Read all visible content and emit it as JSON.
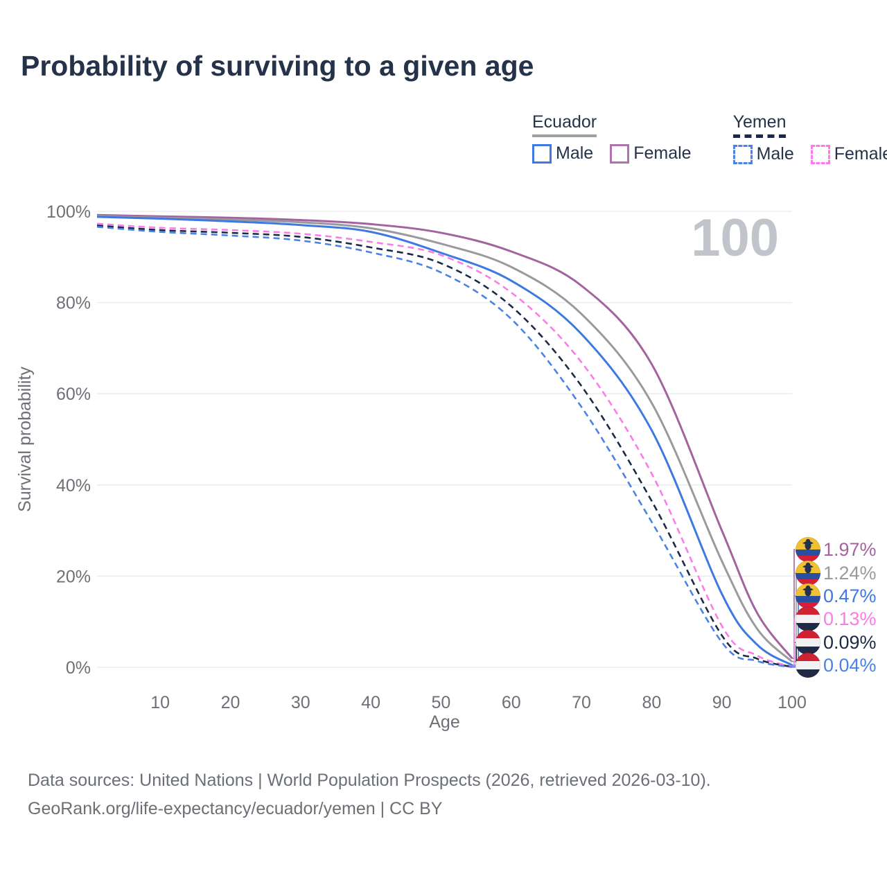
{
  "title": "Probability of surviving to a given age",
  "watermark": "100",
  "legend": {
    "groups": [
      {
        "name": "Ecuador",
        "line_style": "solid",
        "underline_color": "#9e9ea3",
        "items": [
          {
            "label": "Male",
            "color": "#3d79e0"
          },
          {
            "label": "Female",
            "color": "#ad74ad"
          }
        ]
      },
      {
        "name": "Yemen",
        "line_style": "dashed",
        "underline_color": "#1b2a45",
        "items": [
          {
            "label": "Male",
            "color": "#4a82e8"
          },
          {
            "label": "Female",
            "color": "#fb7ce8"
          }
        ]
      }
    ]
  },
  "chart_data": {
    "type": "line",
    "title": "Probability of surviving to a given age",
    "xlabel": "Age",
    "ylabel": "Survival probability",
    "xlim": [
      1,
      100
    ],
    "ylim": [
      0,
      100
    ],
    "grid": "horizontal-only",
    "x_ticks": [
      {
        "v": 10,
        "label": "10"
      },
      {
        "v": 20,
        "label": "20"
      },
      {
        "v": 30,
        "label": "30"
      },
      {
        "v": 40,
        "label": "40"
      },
      {
        "v": 50,
        "label": "50"
      },
      {
        "v": 60,
        "label": "60"
      },
      {
        "v": 70,
        "label": "70"
      },
      {
        "v": 80,
        "label": "80"
      },
      {
        "v": 90,
        "label": "90"
      },
      {
        "v": 100,
        "label": "100"
      }
    ],
    "y_ticks": [
      {
        "v": 0,
        "label": "0%"
      },
      {
        "v": 20,
        "label": "20%"
      },
      {
        "v": 40,
        "label": "40%"
      },
      {
        "v": 60,
        "label": "60%"
      },
      {
        "v": 80,
        "label": "80%"
      },
      {
        "v": 100,
        "label": "100%"
      }
    ],
    "ages": [
      1,
      10,
      20,
      30,
      40,
      50,
      60,
      70,
      80,
      90,
      95,
      100
    ],
    "series": [
      {
        "name": "Ecuador Female",
        "country": "Ecuador",
        "sex": "Female",
        "color": "#a4639e",
        "dashed": false,
        "flag": "ecuador",
        "end_label": "1.97%",
        "values": [
          99.2,
          98.9,
          98.6,
          98.1,
          97.2,
          95.3,
          91.2,
          83.7,
          66.5,
          30.0,
          12.0,
          1.97
        ]
      },
      {
        "name": "Ecuador Both sexes",
        "country": "Ecuador",
        "sex": "Both",
        "color": "#9a9a9e",
        "dashed": false,
        "flag": "ecuador",
        "end_label": "1.24%",
        "values": [
          99.0,
          98.6,
          98.2,
          97.6,
          96.3,
          92.9,
          87.8,
          77.5,
          58.0,
          23.3,
          8.5,
          1.24
        ]
      },
      {
        "name": "Ecuador Male",
        "country": "Ecuador",
        "sex": "Male",
        "color": "#3d79e0",
        "dashed": false,
        "flag": "ecuador",
        "end_label": "0.47%",
        "values": [
          98.8,
          98.4,
          97.8,
          97.0,
          95.5,
          90.9,
          84.8,
          73.1,
          52.0,
          16.1,
          5.0,
          0.47
        ]
      },
      {
        "name": "Yemen Female",
        "country": "Yemen",
        "sex": "Female",
        "color": "#fb7ce8",
        "dashed": true,
        "flag": "yemen",
        "end_label": "0.13%",
        "values": [
          97.3,
          96.4,
          95.9,
          95.1,
          93.3,
          90.4,
          82.2,
          66.9,
          42.5,
          9.1,
          2.6,
          0.13
        ]
      },
      {
        "name": "Yemen Both sexes",
        "country": "Yemen",
        "sex": "Both",
        "color": "#1b2a45",
        "dashed": true,
        "flag": "yemen",
        "end_label": "0.09%",
        "values": [
          96.9,
          95.9,
          95.3,
          94.4,
          92.1,
          88.6,
          79.2,
          61.7,
          36.5,
          7.0,
          1.9,
          0.09
        ]
      },
      {
        "name": "Yemen Male",
        "country": "Yemen",
        "sex": "Male",
        "color": "#4a82e8",
        "dashed": true,
        "flag": "yemen",
        "end_label": "0.04%",
        "values": [
          96.6,
          95.5,
          94.7,
          93.6,
          91.0,
          86.6,
          76.4,
          57.1,
          31.9,
          5.5,
          1.4,
          0.04
        ]
      }
    ],
    "legend_position": "top-right"
  },
  "colors": {
    "title": "#24334a",
    "axis_text": "#6e7076",
    "gridline": "#eaeaee",
    "watermark": "#c1c4cb",
    "flag_ecuador": {
      "yellow": "#f0c22f",
      "blue": "#2a4fa0",
      "red": "#d6203a",
      "crest": "#25304d"
    },
    "flag_yemen": {
      "red": "#cf2233",
      "white": "#f2f1f3",
      "black": "#202a44"
    }
  },
  "footer": {
    "line1": "Data sources: United Nations | World Population Prospects (2026, retrieved 2026-03-10).",
    "line2": "GeoRank.org/life-expectancy/ecuador/yemen | CC BY"
  }
}
